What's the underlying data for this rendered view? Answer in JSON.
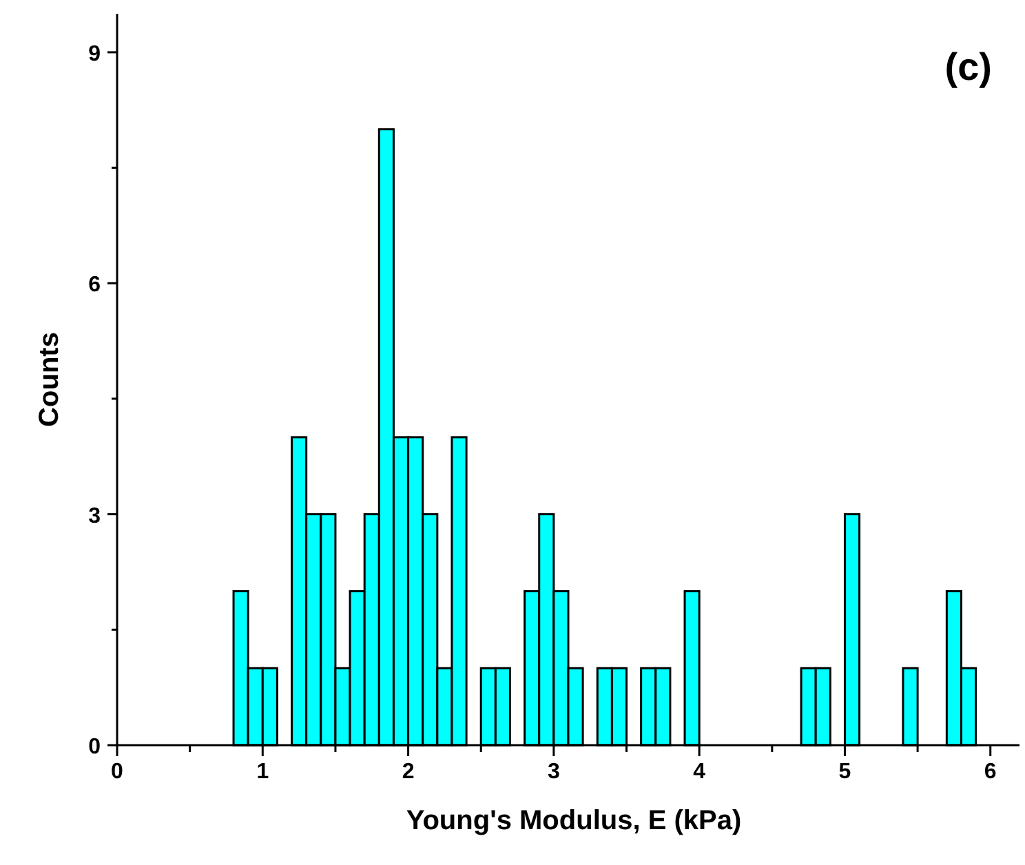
{
  "chart_data": {
    "type": "histogram",
    "xlabel": "Young's Modulus, E (kPa)",
    "ylabel": "Counts",
    "annotations": [
      "(c)"
    ],
    "color": "#00ffff",
    "bins": [
      0.8,
      0.9,
      1.0,
      1.1,
      1.2,
      1.3,
      1.4,
      1.5,
      1.6,
      1.7,
      1.8,
      1.9,
      2.0,
      2.1,
      2.2,
      2.3,
      2.4,
      2.5,
      2.6,
      2.7,
      2.8,
      2.9,
      3.0,
      3.1,
      3.2,
      3.3,
      3.4,
      3.5,
      3.6,
      3.7,
      3.8,
      3.9,
      4.0,
      4.1,
      4.2,
      4.3,
      4.4,
      4.5,
      4.6,
      4.7,
      4.8,
      4.9,
      5.0,
      5.1,
      5.2,
      5.3,
      5.4,
      5.5,
      5.6,
      5.7,
      5.8,
      5.9
    ],
    "values": [
      2,
      1,
      1,
      0,
      4,
      3,
      3,
      1,
      2,
      3,
      8,
      4,
      4,
      3,
      1,
      4,
      0,
      1,
      1,
      0,
      2,
      3,
      2,
      1,
      0,
      1,
      1,
      0,
      1,
      1,
      0,
      2,
      0,
      0,
      0,
      0,
      0,
      0,
      0,
      1,
      1,
      0,
      3,
      0,
      0,
      0,
      1,
      0,
      0,
      2,
      1
    ],
    "xlim": [
      0,
      6.2
    ],
    "xticks": [
      0,
      {
        "value": 0.5,
        "label": null
      },
      1,
      {
        "value": 1.5,
        "label": null
      },
      2,
      {
        "value": 2.5,
        "label": null
      },
      3,
      {
        "value": 3.5,
        "label": null
      },
      4,
      {
        "value": 4.5,
        "label": null
      },
      5,
      {
        "value": 5.5,
        "label": null
      },
      6
    ],
    "ylim": [
      0,
      9.5
    ],
    "yticks": [
      0,
      {
        "value": 1.5,
        "label": null
      },
      3,
      {
        "value": 4.5,
        "label": null
      },
      6,
      {
        "value": 7.5,
        "label": null
      },
      9
    ],
    "grid": false
  }
}
